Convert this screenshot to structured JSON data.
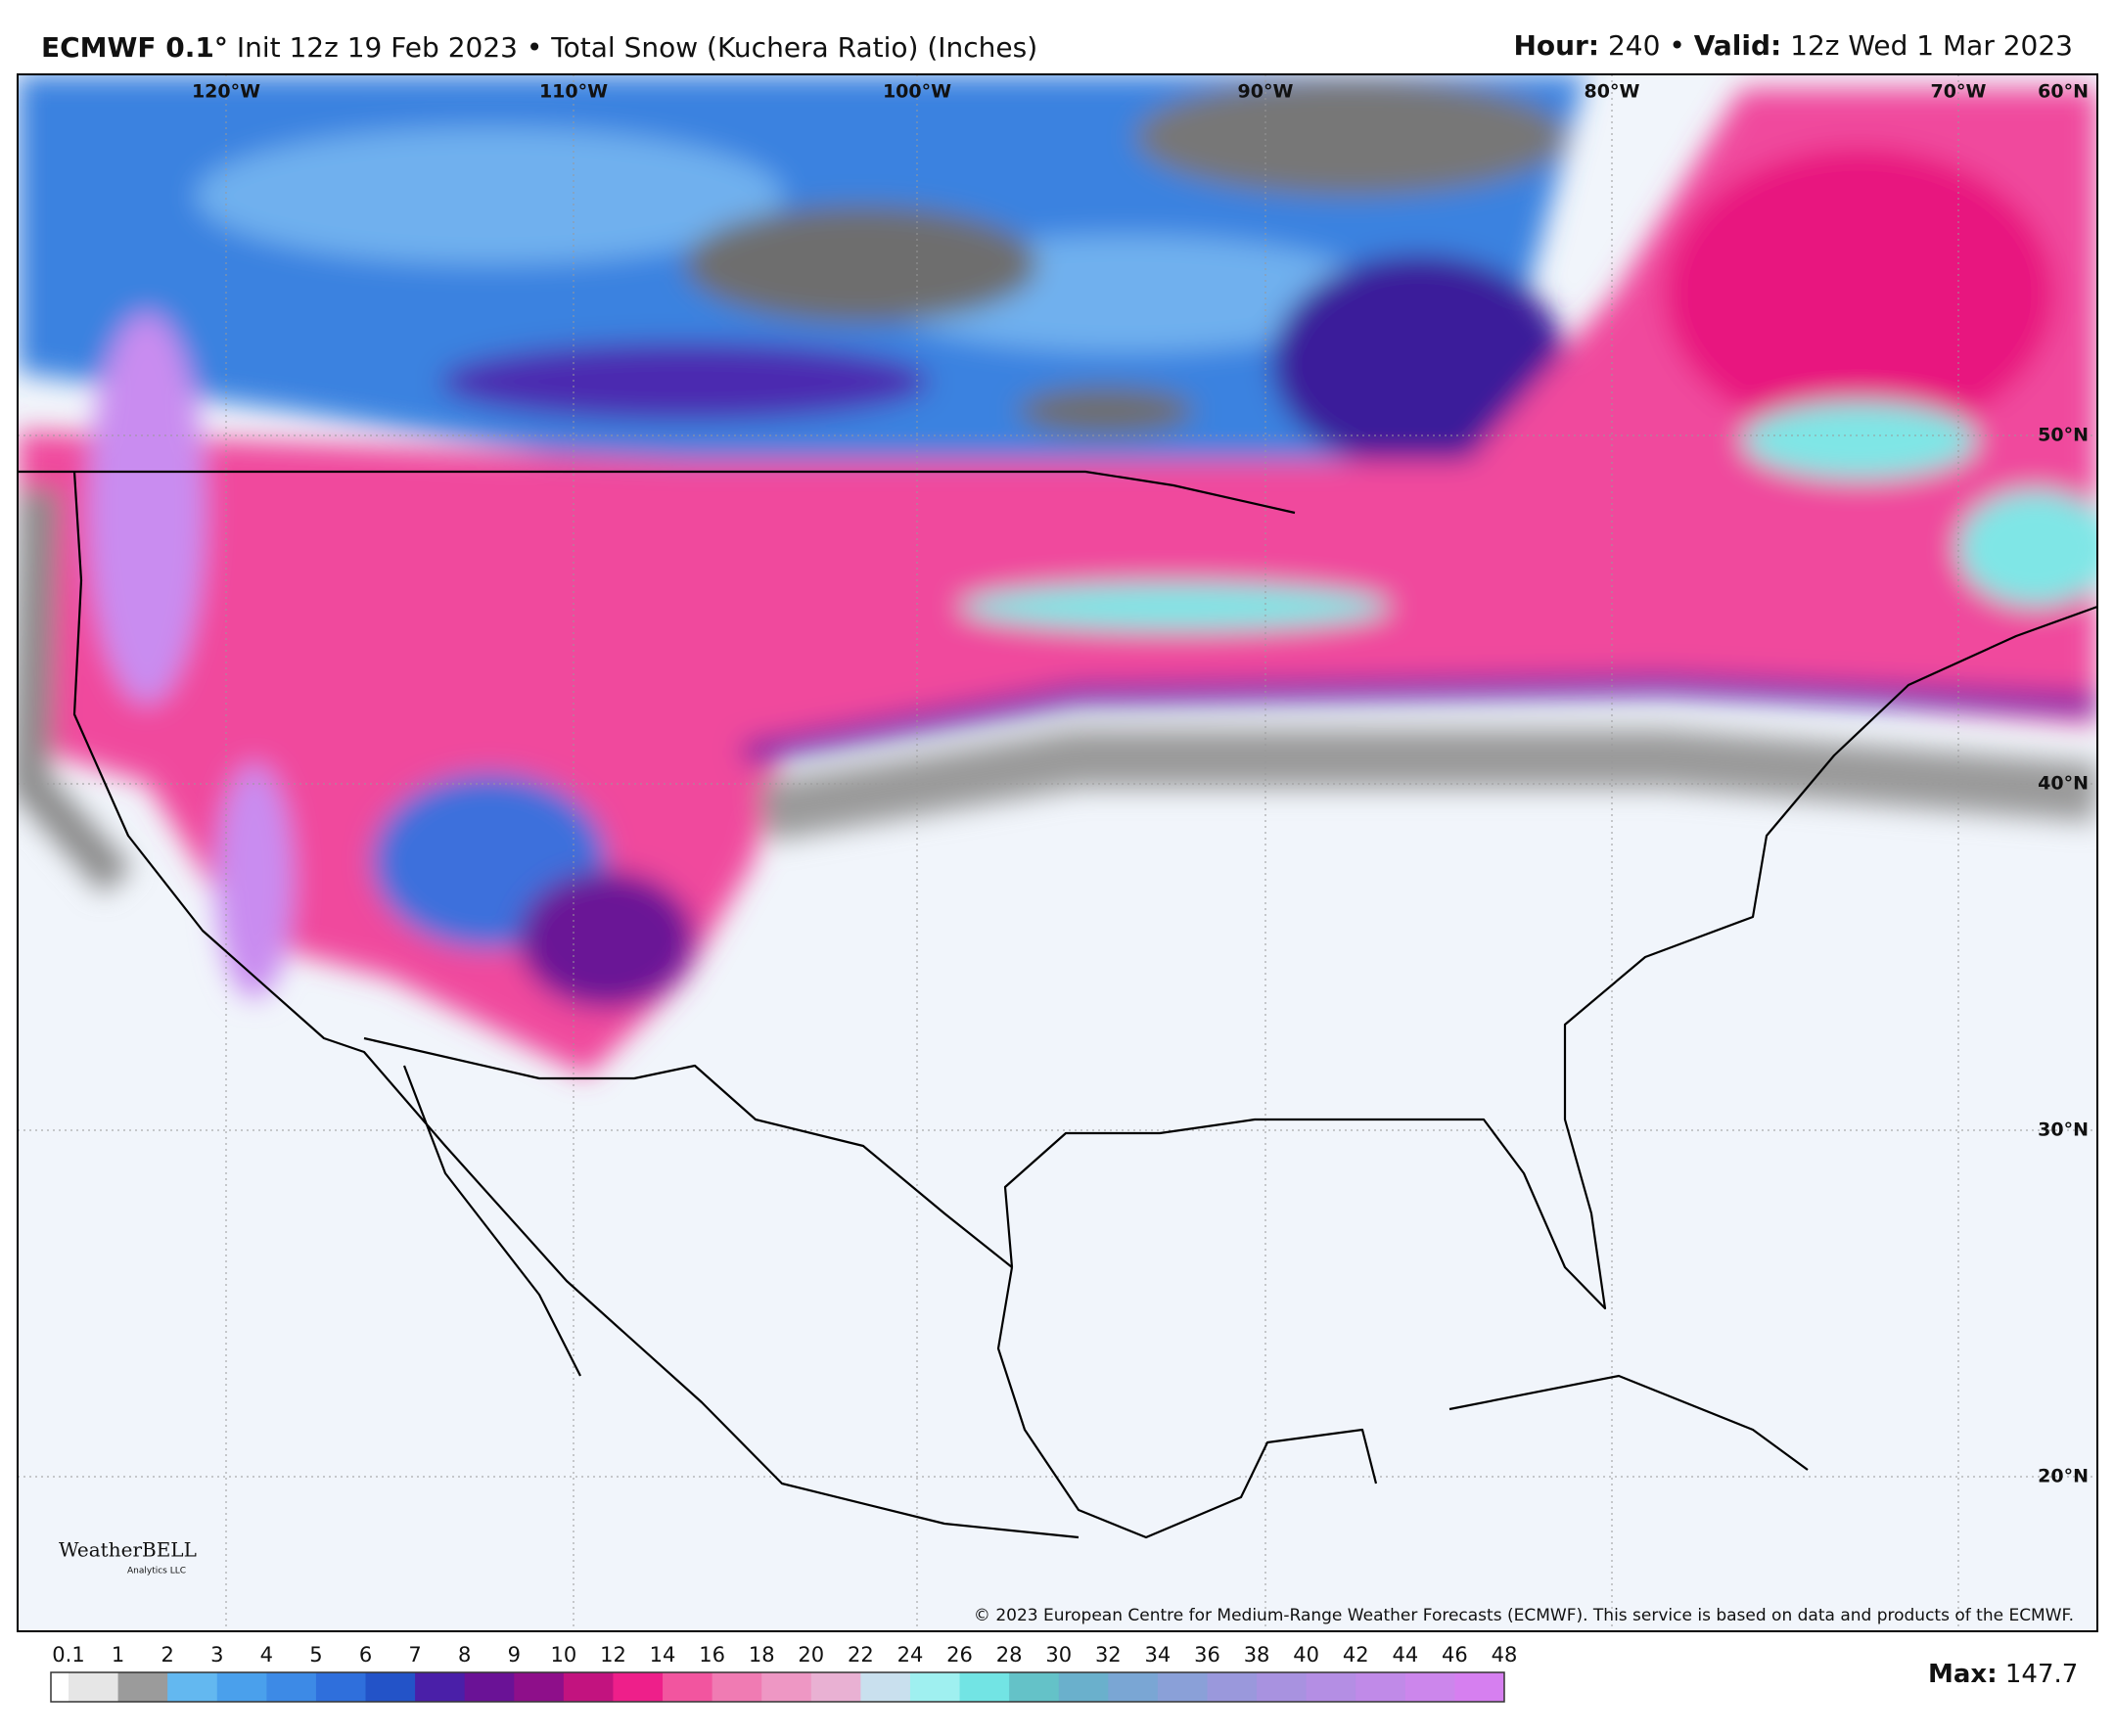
{
  "header": {
    "model": "ECMWF 0.1°",
    "run": "Init 12z 19 Feb 2023",
    "separator": "•",
    "product": "Total Snow (Kuchera Ratio) (Inches)",
    "hour_label": "Hour:",
    "hour": "240",
    "valid_label": "Valid:",
    "valid": "12z Wed 1 Mar 2023"
  },
  "map": {
    "lon_labels": [
      "120°W",
      "110°W",
      "100°W",
      "90°W",
      "80°W",
      "70°W"
    ],
    "lat_labels": [
      "60°N",
      "50°N",
      "40°N",
      "30°N",
      "20°N"
    ],
    "copyright": "© 2023 European Centre for Medium-Range Weather Forecasts (ECMWF). This service is based on data and products of the ECMWF.",
    "logo": "WeatherBELL",
    "logo_sub": "Analytics LLC"
  },
  "colorbar": {
    "ticks": [
      0.1,
      1,
      2,
      3,
      4,
      5,
      6,
      7,
      8,
      9,
      10,
      12,
      14,
      16,
      18,
      20,
      22,
      24,
      26,
      28,
      30,
      32,
      34,
      36,
      38,
      40,
      42,
      44,
      46,
      48
    ],
    "colors": [
      "#e6e6e6",
      "#9b9b9b",
      "#63b8f0",
      "#4aa0ec",
      "#3d8ae6",
      "#2f6fdc",
      "#2353c8",
      "#4a1fa8",
      "#6a1296",
      "#8e0f8a",
      "#c2137f",
      "#ee1f8a",
      "#f2559f",
      "#f07bb3",
      "#ee97c4",
      "#e9b1d3",
      "#c9e0ee",
      "#9ff0f0",
      "#72e4e4",
      "#64c2c8",
      "#6ab0cc",
      "#7aa6d4",
      "#8aa0d8",
      "#9a98dc",
      "#a892e0",
      "#b48ee4",
      "#c08ae8",
      "#cc86ec",
      "#d67ff0"
    ]
  },
  "max": {
    "label": "Max:",
    "value": 147.7
  }
}
